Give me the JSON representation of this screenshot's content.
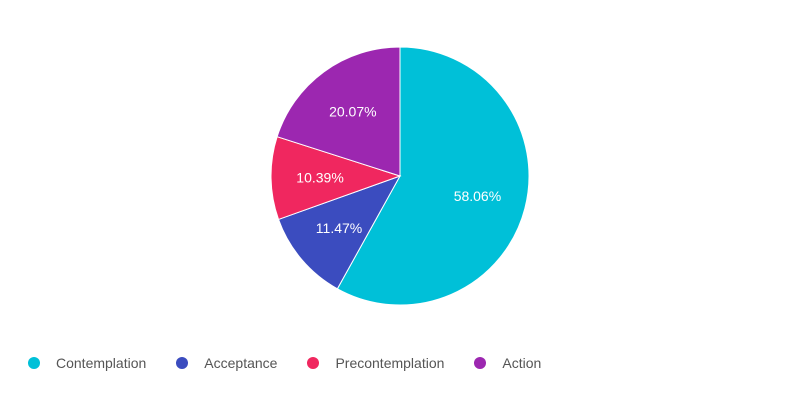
{
  "chart_data": {
    "type": "pie",
    "title": "",
    "categories": [
      "Contemplation",
      "Acceptance",
      "Precontemplation",
      "Action"
    ],
    "values": [
      58.06,
      11.47,
      10.39,
      20.07
    ],
    "labels": [
      "58.06%",
      "11.47%",
      "10.39%",
      "20.07%"
    ],
    "colors": [
      "#00c0d8",
      "#3b4cbf",
      "#f0275f",
      "#9c27b0"
    ],
    "legend_position": "bottom-left",
    "start_angle": "12 o'clock",
    "direction": "clockwise"
  },
  "legend": {
    "items": [
      {
        "label": "Contemplation",
        "color": "#00c0d8"
      },
      {
        "label": "Acceptance",
        "color": "#3b4cbf"
      },
      {
        "label": "Precontemplation",
        "color": "#f0275f"
      },
      {
        "label": "Action",
        "color": "#9c27b0"
      }
    ]
  }
}
